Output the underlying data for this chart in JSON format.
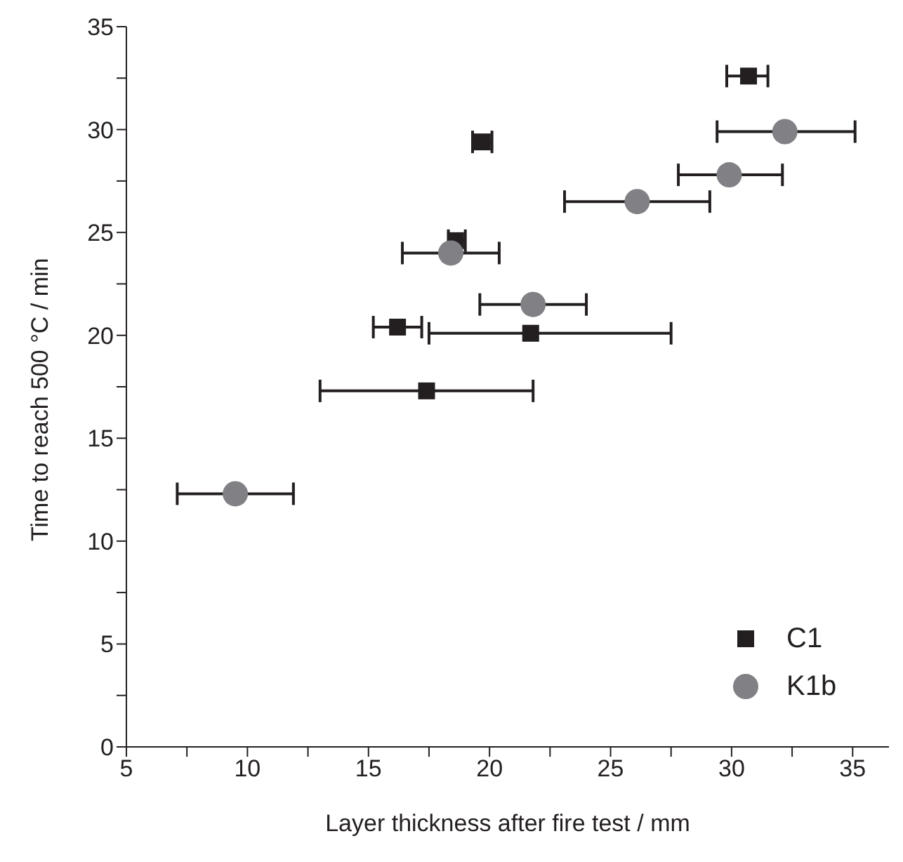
{
  "chart_data": {
    "type": "scatter",
    "xlabel": "Layer thickness after fire test / mm",
    "ylabel": "Time to reach 500 °C / min",
    "xlim": [
      5,
      36.5
    ],
    "xticks": [
      5,
      {
        "value": 7.5,
        "label": null
      },
      10,
      {
        "value": 12.5,
        "label": null
      },
      15,
      {
        "value": 17.5,
        "label": null
      },
      20,
      {
        "value": 22.5,
        "label": null
      },
      25,
      {
        "value": 27.5,
        "label": null
      },
      30,
      {
        "value": 32.5,
        "label": null
      },
      35
    ],
    "ylim": [
      0,
      35
    ],
    "yticks": [
      0,
      {
        "value": 2.5,
        "label": null
      },
      5,
      {
        "value": 7.5,
        "label": null
      },
      10,
      {
        "value": 12.5,
        "label": null
      },
      15,
      {
        "value": 17.5,
        "label": null
      },
      20,
      {
        "value": 22.5,
        "label": null
      },
      25,
      {
        "value": 27.5,
        "label": null
      },
      30,
      {
        "value": 32.5,
        "label": null
      },
      35
    ],
    "grid": false,
    "legend": "bottom right",
    "series": [
      {
        "name": "C1",
        "color": "#231f20",
        "marker": "square",
        "x": [
          30.7,
          19.7,
          18.6,
          16.2,
          21.7,
          17.4
        ],
        "values": [
          32.6,
          29.4,
          24.6,
          20.4,
          20.1,
          17.3
        ],
        "xerrors": [
          [
            29.8,
            31.5
          ],
          [
            19.3,
            20.1
          ],
          [
            18.3,
            19.0
          ],
          [
            15.2,
            17.2
          ],
          [
            17.5,
            27.5
          ],
          [
            13.0,
            21.8
          ]
        ]
      },
      {
        "name": "K1b",
        "color": "#808085",
        "marker": "circle",
        "x": [
          32.2,
          29.9,
          26.1,
          18.4,
          21.8,
          9.5
        ],
        "values": [
          29.9,
          27.8,
          26.5,
          24.0,
          21.5,
          12.3
        ],
        "xerrors": [
          [
            29.4,
            35.1
          ],
          [
            27.8,
            32.1
          ],
          [
            23.1,
            29.1
          ],
          [
            16.4,
            20.4
          ],
          [
            19.6,
            24.0
          ],
          [
            7.1,
            11.9
          ]
        ]
      }
    ]
  }
}
